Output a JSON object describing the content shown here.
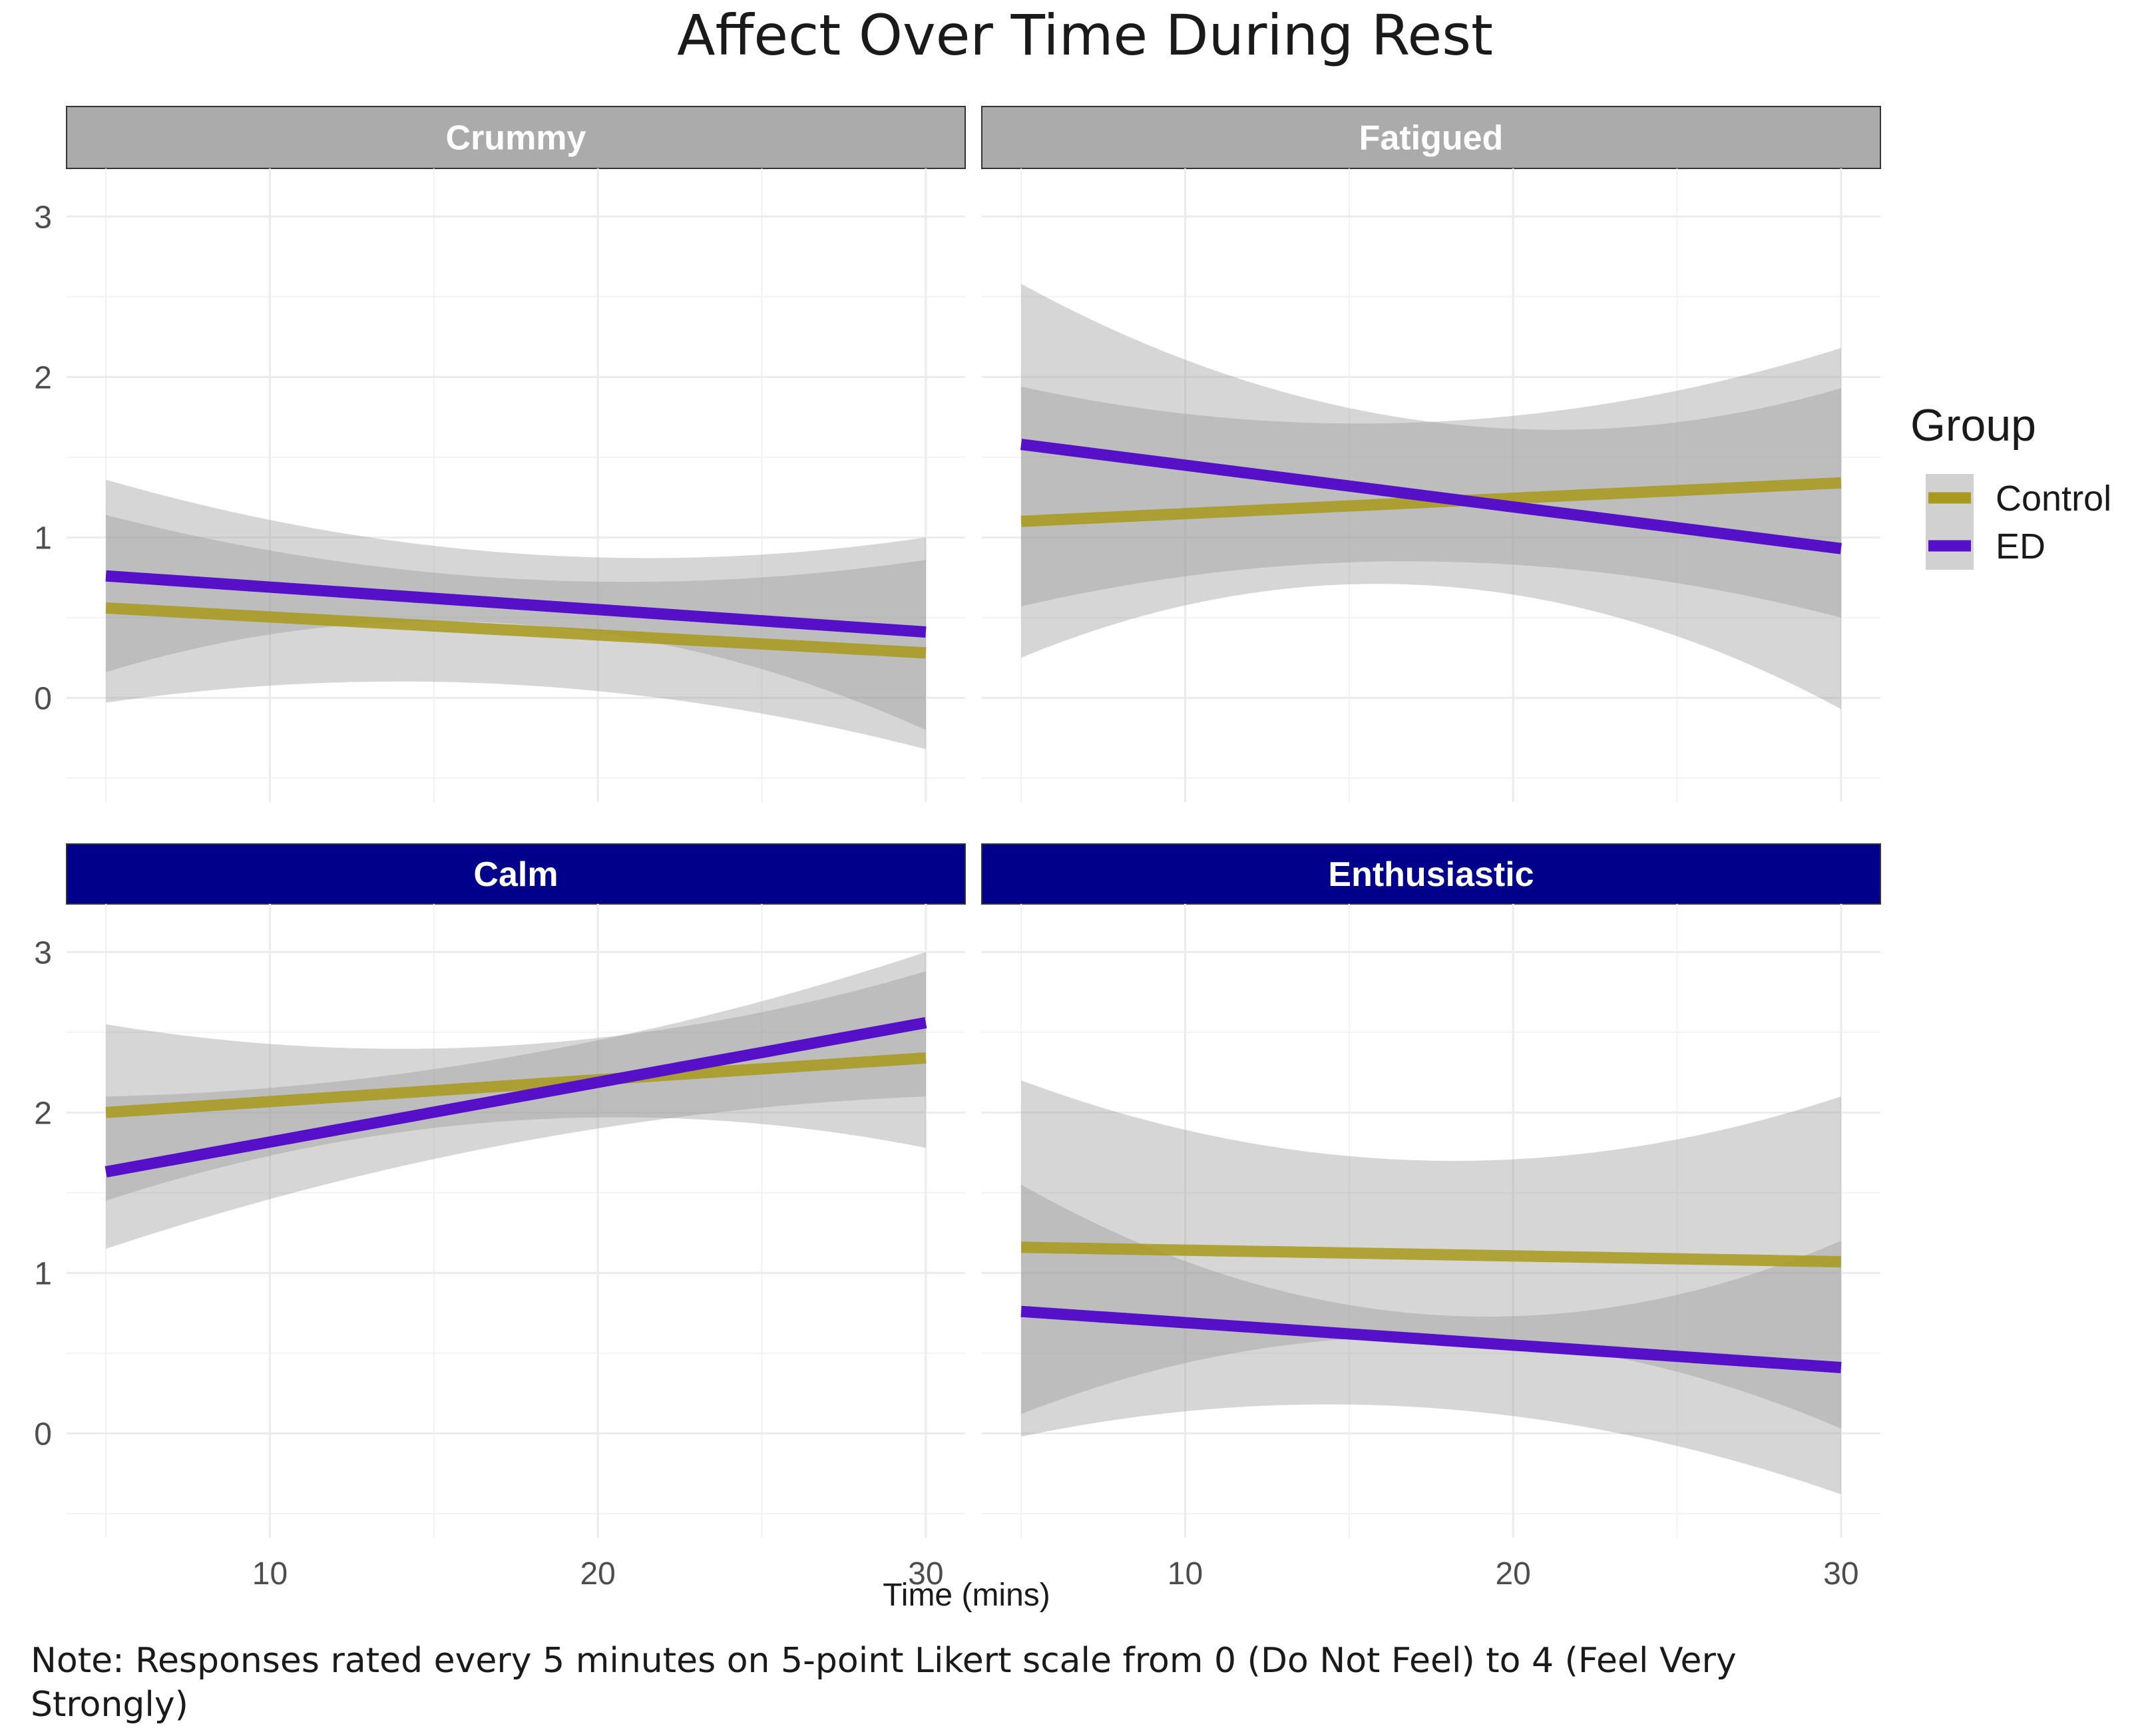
{
  "chart_data": {
    "type": "line",
    "title": "Affect Over Time During Rest",
    "xlabel": "Time (mins)",
    "ylabel": "",
    "x_ticks": [
      10,
      20,
      30
    ],
    "y_ticks": [
      0,
      1,
      2,
      3
    ],
    "xlim": [
      3.8,
      31.2
    ],
    "ylim": [
      -0.65,
      3.3
    ],
    "grid": true,
    "legend": {
      "title": "Group",
      "position": "right",
      "entries": [
        {
          "name": "Control",
          "color": "#a89a1c"
        },
        {
          "name": "ED",
          "color": "#5510c8"
        }
      ]
    },
    "note_lines": [
      "Note: Responses rated every 5 minutes on 5-point Likert scale from 0 (Do Not Feel) to 4 (Feel Very",
      "Strongly)"
    ],
    "colors": {
      "strip_negative": "#ababab",
      "strip_positive": "#00008b",
      "band": "#999999"
    },
    "panels": [
      {
        "label": "Crummy",
        "strip": "negative",
        "series": [
          {
            "name": "Control",
            "x": [
              5,
              30
            ],
            "y": [
              0.56,
              0.28
            ],
            "ci_x": [
              5,
              15,
              30
            ],
            "ci_lower": [
              -0.03,
              0.1,
              -0.32
            ],
            "ci_upper": [
              1.14,
              0.78,
              0.86
            ]
          },
          {
            "name": "ED",
            "x": [
              5,
              30
            ],
            "y": [
              0.76,
              0.41
            ],
            "ci_x": [
              5,
              17.5,
              30
            ],
            "ci_lower": [
              0.16,
              0.46,
              -0.2
            ],
            "ci_upper": [
              1.36,
              0.9,
              1.0
            ]
          }
        ]
      },
      {
        "label": "Fatigued",
        "strip": "negative",
        "series": [
          {
            "name": "Control",
            "x": [
              5,
              30
            ],
            "y": [
              1.1,
              1.34
            ],
            "ci_x": [
              5,
              17.5,
              30
            ],
            "ci_lower": [
              0.57,
              0.85,
              0.5
            ],
            "ci_upper": [
              1.94,
              1.72,
              2.18
            ]
          },
          {
            "name": "ED",
            "x": [
              5,
              30
            ],
            "y": [
              1.58,
              0.93
            ],
            "ci_x": [
              5,
              17.5,
              30
            ],
            "ci_lower": [
              0.25,
              0.7,
              -0.07
            ],
            "ci_upper": [
              2.58,
              1.72,
              1.93
            ]
          }
        ]
      },
      {
        "label": "Calm",
        "strip": "positive",
        "series": [
          {
            "name": "Control",
            "x": [
              5,
              30
            ],
            "y": [
              2.0,
              2.34
            ],
            "ci_x": [
              5,
              17.5,
              30
            ],
            "ci_lower": [
              1.45,
              1.95,
              1.78
            ],
            "ci_upper": [
              2.55,
              2.42,
              2.88
            ]
          },
          {
            "name": "ED",
            "x": [
              5,
              30
            ],
            "y": [
              1.63,
              2.56
            ],
            "ci_x": [
              5,
              20,
              30
            ],
            "ci_lower": [
              1.15,
              1.9,
              2.1
            ],
            "ci_upper": [
              2.1,
              2.45,
              3.0
            ]
          }
        ]
      },
      {
        "label": "Enthusiastic",
        "strip": "positive",
        "series": [
          {
            "name": "Control",
            "x": [
              5,
              30
            ],
            "y": [
              1.16,
              1.07
            ],
            "ci_x": [
              5,
              17.5,
              30
            ],
            "ci_lower": [
              0.12,
              0.6,
              0.03
            ],
            "ci_upper": [
              2.2,
              1.7,
              2.1
            ]
          },
          {
            "name": "ED",
            "x": [
              5,
              30
            ],
            "y": [
              0.76,
              0.41
            ],
            "ci_x": [
              5,
              15,
              30
            ],
            "ci_lower": [
              -0.02,
              0.18,
              -0.38
            ],
            "ci_upper": [
              1.55,
              0.8,
              1.2
            ]
          }
        ]
      }
    ]
  }
}
